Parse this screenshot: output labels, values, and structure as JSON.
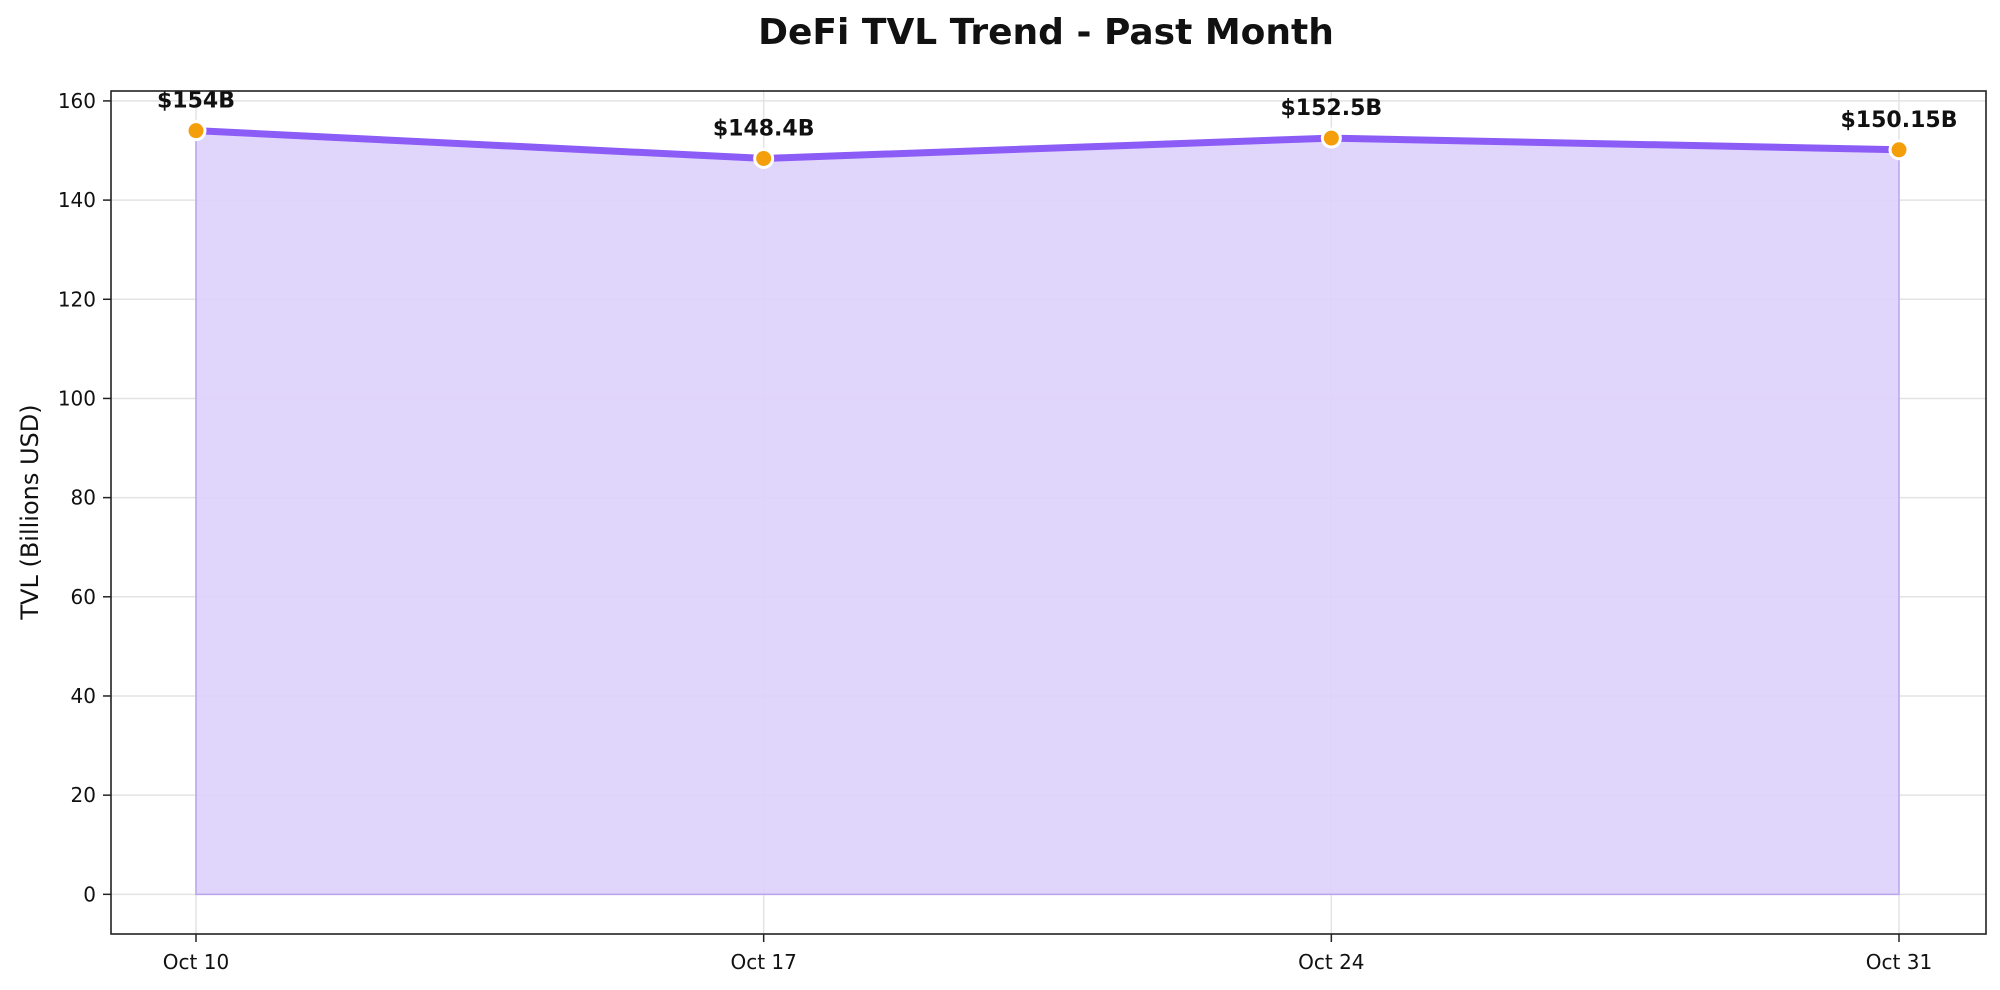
{
  "chart_data": {
    "type": "area",
    "title": "DeFi TVL Trend - Past Month",
    "xlabel": "",
    "ylabel": "TVL (Billions USD)",
    "categories": [
      "Oct 10",
      "Oct 17",
      "Oct 24",
      "Oct 31"
    ],
    "values": [
      154,
      148.4,
      152.5,
      150.15
    ],
    "data_labels": [
      "$154B",
      "$148.4B",
      "$152.5B",
      "$150.15B"
    ],
    "ylim": [
      -8,
      162
    ],
    "yticks": [
      0,
      20,
      40,
      60,
      80,
      100,
      120,
      140,
      160
    ],
    "ytick_labels": [
      "0",
      "20",
      "40",
      "60",
      "80",
      "100",
      "120",
      "140",
      "160"
    ],
    "grid": true,
    "legend": "none",
    "colors": {
      "line": "#8b5cf6",
      "fill": "#ddd0fb",
      "marker": "#f59e0b",
      "marker_edge": "#ffffff"
    }
  }
}
